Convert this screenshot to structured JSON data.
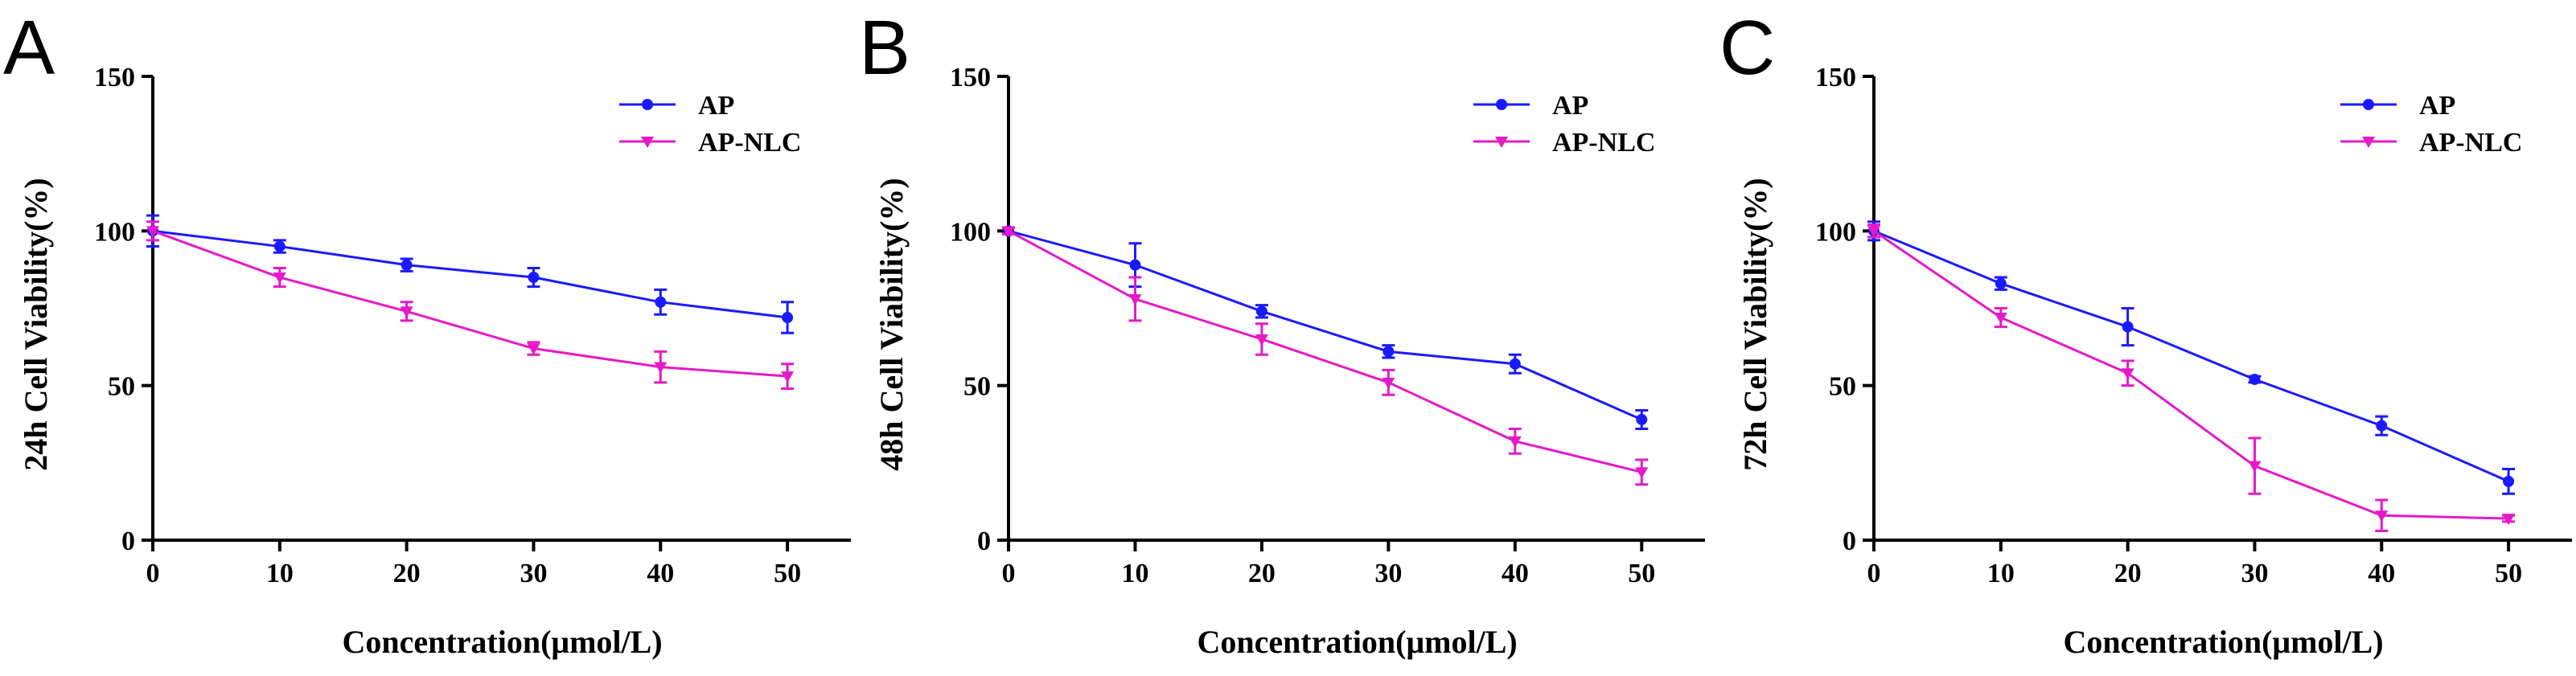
{
  "chart_data": [
    {
      "type": "line",
      "panel_label": "A",
      "title": "",
      "xlabel": "Concentration(μmol/L)",
      "ylabel": "24h Cell Viability(%)",
      "xlim": [
        0,
        55
      ],
      "ylim": [
        0,
        150
      ],
      "x_ticks": [
        0,
        10,
        20,
        30,
        40,
        50
      ],
      "y_ticks": [
        0,
        50,
        100,
        150
      ],
      "x": [
        0,
        10,
        20,
        30,
        40,
        50
      ],
      "legend_position": "top-right",
      "series": [
        {
          "name": "AP",
          "color": "#1a1aff",
          "marker": "circle",
          "values": [
            100,
            95,
            89,
            85,
            77,
            72
          ],
          "errors": [
            5,
            2,
            2,
            3,
            4,
            5
          ]
        },
        {
          "name": "AP-NLC",
          "color": "#e619c8",
          "marker": "triangle-down",
          "values": [
            100,
            85,
            74,
            62,
            56,
            53
          ],
          "errors": [
            3,
            3,
            3,
            2,
            5,
            4
          ]
        }
      ]
    },
    {
      "type": "line",
      "panel_label": "B",
      "title": "",
      "xlabel": "Concentration(μmol/L)",
      "ylabel": "48h Cell Viability(%)",
      "xlim": [
        0,
        55
      ],
      "ylim": [
        0,
        150
      ],
      "x_ticks": [
        0,
        10,
        20,
        30,
        40,
        50
      ],
      "y_ticks": [
        0,
        50,
        100,
        150
      ],
      "x": [
        0,
        10,
        20,
        30,
        40,
        50
      ],
      "legend_position": "top-right",
      "series": [
        {
          "name": "AP",
          "color": "#1a1aff",
          "marker": "circle",
          "values": [
            100,
            89,
            74,
            61,
            57,
            39
          ],
          "errors": [
            1,
            7,
            2,
            2,
            3,
            3
          ]
        },
        {
          "name": "AP-NLC",
          "color": "#e619c8",
          "marker": "triangle-down",
          "values": [
            100,
            78,
            65,
            51,
            32,
            22
          ],
          "errors": [
            1,
            7,
            5,
            4,
            4,
            4
          ]
        }
      ]
    },
    {
      "type": "line",
      "panel_label": "C",
      "title": "",
      "xlabel": "Concentration(μmol/L)",
      "ylabel": "72h Cell Viability(%)",
      "xlim": [
        0,
        55
      ],
      "ylim": [
        0,
        150
      ],
      "x_ticks": [
        0,
        10,
        20,
        30,
        40,
        50
      ],
      "y_ticks": [
        0,
        50,
        100,
        150
      ],
      "x": [
        0,
        10,
        20,
        30,
        40,
        50
      ],
      "legend_position": "top-right",
      "series": [
        {
          "name": "AP",
          "color": "#1a1aff",
          "marker": "circle",
          "values": [
            100,
            83,
            69,
            52,
            37,
            19
          ],
          "errors": [
            3,
            2,
            6,
            1,
            3,
            4
          ]
        },
        {
          "name": "AP-NLC",
          "color": "#e619c8",
          "marker": "triangle-down",
          "values": [
            100,
            72,
            54,
            24,
            8,
            7
          ],
          "errors": [
            2,
            3,
            4,
            9,
            5,
            1
          ]
        }
      ]
    }
  ]
}
